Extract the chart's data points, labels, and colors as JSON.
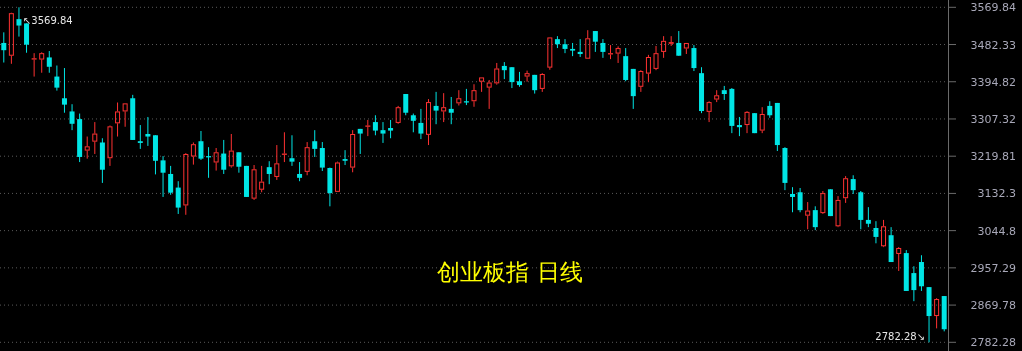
{
  "chart_data": {
    "type": "candlestick",
    "title": "创业板指 日线",
    "categories": [
      null,
      null,
      null,
      null,
      null,
      null,
      null,
      null,
      null,
      null,
      null,
      null,
      null,
      null,
      null,
      null,
      null,
      null,
      null,
      null,
      null,
      null,
      null,
      null,
      null,
      null,
      null,
      null,
      null,
      null,
      null,
      null,
      null,
      null,
      null,
      null,
      null,
      null,
      null,
      null,
      null,
      null,
      null,
      null,
      null,
      null,
      null,
      null,
      null,
      null,
      null,
      null,
      null,
      null,
      null,
      null,
      null,
      null,
      null,
      null,
      null,
      null,
      null,
      null,
      null,
      null,
      null,
      null,
      null,
      null,
      null,
      null,
      null,
      null,
      null,
      null,
      null,
      null,
      null,
      null,
      null,
      null,
      null,
      null,
      null,
      null,
      null,
      null,
      null,
      null,
      null,
      null,
      null,
      null,
      null,
      null,
      null,
      null,
      null,
      null,
      null,
      null,
      null,
      null,
      null,
      null,
      null,
      null,
      null,
      null,
      null,
      null,
      null,
      null,
      null,
      null,
      null,
      null,
      null,
      null,
      null,
      null,
      null,
      null,
      null
    ],
    "ohlc": [
      [
        3486,
        3511,
        3440,
        3469
      ],
      [
        3456,
        3557,
        3437,
        3556
      ],
      [
        3542,
        3569.84,
        3501,
        3527
      ],
      [
        3532,
        3532,
        3463,
        3482
      ],
      [
        3447,
        3462,
        3407,
        3450
      ],
      [
        3447,
        3464,
        3416,
        3462
      ],
      [
        3452,
        3467,
        3416,
        3430
      ],
      [
        3407,
        3433,
        3374,
        3381
      ],
      [
        3356,
        3427,
        3322,
        3341
      ],
      [
        3325,
        3342,
        3281,
        3296
      ],
      [
        3307,
        3320,
        3206,
        3218
      ],
      [
        3233,
        3266,
        3214,
        3243
      ],
      [
        3254,
        3300,
        3225,
        3273
      ],
      [
        3252,
        3262,
        3157,
        3188
      ],
      [
        3215,
        3292,
        3197,
        3290
      ],
      [
        3297,
        3346,
        3266,
        3325
      ],
      [
        3325,
        3344,
        3289,
        3344
      ],
      [
        3356,
        3364,
        3258,
        3258
      ],
      [
        3255,
        3293,
        3237,
        3251
      ],
      [
        3272,
        3312,
        3244,
        3266
      ],
      [
        3269,
        3269,
        3177,
        3209
      ],
      [
        3210,
        3220,
        3124,
        3181
      ],
      [
        3178,
        3197,
        3129,
        3134
      ],
      [
        3146,
        3161,
        3084,
        3099
      ],
      [
        3104,
        3227,
        3082,
        3225
      ],
      [
        3219,
        3252,
        3200,
        3248
      ],
      [
        3255,
        3279,
        3211,
        3214
      ],
      [
        3220,
        3241,
        3169,
        3217
      ],
      [
        3205,
        3239,
        3186,
        3229
      ],
      [
        3226,
        3258,
        3178,
        3188
      ],
      [
        3196,
        3272,
        3193,
        3233
      ],
      [
        3229,
        3229,
        3181,
        3195
      ],
      [
        3197,
        3197,
        3124,
        3124
      ],
      [
        3120,
        3199,
        3117,
        3189
      ],
      [
        3141,
        3197,
        3135,
        3160
      ],
      [
        3194,
        3208,
        3154,
        3178
      ],
      [
        3171,
        3246,
        3164,
        3203
      ],
      [
        3223,
        3276,
        3206,
        3226
      ],
      [
        3215,
        3269,
        3197,
        3207
      ],
      [
        3178,
        3206,
        3161,
        3169
      ],
      [
        3183,
        3253,
        3175,
        3241
      ],
      [
        3255,
        3281,
        3218,
        3237
      ],
      [
        3239,
        3253,
        3185,
        3193
      ],
      [
        3192,
        3193,
        3102,
        3133
      ],
      [
        3136,
        3207,
        3136,
        3205
      ],
      [
        3213,
        3234,
        3199,
        3209
      ],
      [
        3193,
        3281,
        3182,
        3272
      ],
      [
        3284,
        3284,
        3225,
        3273
      ],
      [
        3289,
        3305,
        3267,
        3292
      ],
      [
        3300,
        3316,
        3269,
        3280
      ],
      [
        3281,
        3300,
        3251,
        3273
      ],
      [
        3286,
        3305,
        3262,
        3280
      ],
      [
        3298,
        3338,
        3296,
        3335
      ],
      [
        3366,
        3366,
        3316,
        3322
      ],
      [
        3316,
        3320,
        3276,
        3303
      ],
      [
        3298,
        3331,
        3260,
        3273
      ],
      [
        3270,
        3354,
        3246,
        3347
      ],
      [
        3338,
        3371,
        3295,
        3327
      ],
      [
        3325,
        3368,
        3300,
        3335
      ],
      [
        3331,
        3359,
        3295,
        3322
      ],
      [
        3344,
        3375,
        3339,
        3356
      ],
      [
        3349,
        3378,
        3340,
        3346
      ],
      [
        3349,
        3389,
        3336,
        3375
      ],
      [
        3395,
        3405,
        3371,
        3405
      ],
      [
        3381,
        3399,
        3331,
        3393
      ],
      [
        3391,
        3439,
        3388,
        3426
      ],
      [
        3432,
        3441,
        3401,
        3422
      ],
      [
        3429,
        3429,
        3380,
        3394
      ],
      [
        3396,
        3418,
        3383,
        3387
      ],
      [
        3407,
        3421,
        3395,
        3415
      ],
      [
        3411,
        3411,
        3367,
        3375
      ],
      [
        3378,
        3415,
        3371,
        3413
      ],
      [
        3428,
        3499,
        3423,
        3499
      ],
      [
        3495,
        3502,
        3474,
        3483
      ],
      [
        3483,
        3495,
        3462,
        3472
      ],
      [
        3472,
        3486,
        3455,
        3468
      ],
      [
        3465,
        3495,
        3453,
        3460
      ],
      [
        3449,
        3516,
        3449,
        3497
      ],
      [
        3514,
        3514,
        3465,
        3489
      ],
      [
        3486,
        3495,
        3451,
        3465
      ],
      [
        3459,
        3481,
        3448,
        3462
      ],
      [
        3461,
        3478,
        3439,
        3474
      ],
      [
        3455,
        3474,
        3396,
        3399
      ],
      [
        3425,
        3425,
        3331,
        3361
      ],
      [
        3383,
        3422,
        3371,
        3420
      ],
      [
        3414,
        3458,
        3394,
        3453
      ],
      [
        3425,
        3479,
        3422,
        3462
      ],
      [
        3465,
        3502,
        3451,
        3491
      ],
      [
        3484,
        3502,
        3479,
        3488
      ],
      [
        3486,
        3514,
        3456,
        3456
      ],
      [
        3473,
        3486,
        3460,
        3486
      ],
      [
        3474,
        3481,
        3420,
        3427
      ],
      [
        3415,
        3429,
        3321,
        3326
      ],
      [
        3324,
        3349,
        3300,
        3347
      ],
      [
        3353,
        3375,
        3347,
        3363
      ],
      [
        3375,
        3385,
        3352,
        3366
      ],
      [
        3378,
        3380,
        3274,
        3291
      ],
      [
        3293,
        3312,
        3267,
        3288
      ],
      [
        3293,
        3326,
        3274,
        3324
      ],
      [
        3321,
        3321,
        3274,
        3274
      ],
      [
        3280,
        3335,
        3274,
        3319
      ],
      [
        3338,
        3349,
        3310,
        3316
      ],
      [
        3345,
        3345,
        3232,
        3246
      ],
      [
        3239,
        3241,
        3140,
        3157
      ],
      [
        3131,
        3147,
        3088,
        3124
      ],
      [
        3135,
        3145,
        3088,
        3093
      ],
      [
        3080,
        3112,
        3048,
        3092
      ],
      [
        3093,
        3102,
        3046,
        3053
      ],
      [
        3086,
        3138,
        3084,
        3133
      ],
      [
        3142,
        3142,
        3079,
        3079
      ],
      [
        3055,
        3126,
        3053,
        3117
      ],
      [
        3121,
        3173,
        3110,
        3168
      ],
      [
        3166,
        3175,
        3131,
        3140
      ],
      [
        3135,
        3138,
        3048,
        3070
      ],
      [
        3070,
        3100,
        3053,
        3061
      ],
      [
        3051,
        3067,
        3015,
        3030
      ],
      [
        3008,
        3070,
        3006,
        3055
      ],
      [
        3034,
        3053,
        2971,
        2971
      ],
      [
        2990,
        3006,
        2950,
        3004
      ],
      [
        2992,
        2999,
        2903,
        2903
      ],
      [
        2945,
        2961,
        2879,
        2905
      ],
      [
        2971,
        2987,
        2903,
        2914
      ],
      [
        2912,
        2912,
        2782.28,
        2844
      ],
      [
        2844,
        2886,
        2815,
        2884
      ],
      [
        2891,
        2891,
        2808,
        2813
      ]
    ],
    "colors": [
      "#00e5e5",
      "#ff3232",
      "#00e5e5",
      "#00e5e5",
      "#ff3232",
      "#ff3232",
      "#00e5e5",
      "#00e5e5",
      "#00e5e5",
      "#00e5e5",
      "#00e5e5",
      "#ff3232",
      "#ff3232",
      "#00e5e5",
      "#ff3232",
      "#ff3232",
      "#ff3232",
      "#00e5e5",
      "#00e5e5",
      "#00e5e5",
      "#00e5e5",
      "#00e5e5",
      "#00e5e5",
      "#00e5e5",
      "#ff3232",
      "#ff3232",
      "#00e5e5",
      "#00e5e5",
      "#ff3232",
      "#00e5e5",
      "#ff3232",
      "#00e5e5",
      "#00e5e5",
      "#ff3232",
      "#ff3232",
      "#00e5e5",
      "#ff3232",
      "#ff3232",
      "#00e5e5",
      "#00e5e5",
      "#ff3232",
      "#00e5e5",
      "#00e5e5",
      "#00e5e5",
      "#ff3232",
      "#00e5e5",
      "#ff3232",
      "#00e5e5",
      "#ff3232",
      "#00e5e5",
      "#00e5e5",
      "#00e5e5",
      "#ff3232",
      "#00e5e5",
      "#00e5e5",
      "#00e5e5",
      "#ff3232",
      "#00e5e5",
      "#ff3232",
      "#00e5e5",
      "#ff3232",
      "#00e5e5",
      "#ff3232",
      "#ff3232",
      "#ff3232",
      "#ff3232",
      "#00e5e5",
      "#00e5e5",
      "#00e5e5",
      "#ff3232",
      "#00e5e5",
      "#ff3232",
      "#ff3232",
      "#00e5e5",
      "#00e5e5",
      "#00e5e5",
      "#00e5e5",
      "#ff3232",
      "#00e5e5",
      "#00e5e5",
      "#ff3232",
      "#ff3232",
      "#00e5e5",
      "#00e5e5",
      "#ff3232",
      "#ff3232",
      "#ff3232",
      "#ff3232",
      "#ff3232",
      "#00e5e5",
      "#ff3232",
      "#00e5e5",
      "#00e5e5",
      "#ff3232",
      "#ff3232",
      "#00e5e5",
      "#00e5e5",
      "#00e5e5",
      "#ff3232",
      "#00e5e5",
      "#ff3232",
      "#00e5e5",
      "#00e5e5",
      "#00e5e5",
      "#00e5e5",
      "#00e5e5",
      "#ff3232",
      "#00e5e5",
      "#ff3232",
      "#00e5e5",
      "#ff3232",
      "#ff3232",
      "#00e5e5",
      "#00e5e5",
      "#00e5e5",
      "#00e5e5",
      "#ff3232",
      "#00e5e5",
      "#ff3232",
      "#00e5e5",
      "#00e5e5",
      "#00e5e5",
      "#00e5e5",
      "#ff3232",
      "#00e5e5"
    ],
    "ylim": [
      2782.28,
      3569.84
    ],
    "yticks": [
      2782.28,
      2869.78,
      2957.29,
      3044.8,
      3132.3,
      3219.81,
      3307.32,
      3394.82,
      3482.33,
      3569.84
    ],
    "grid": "y",
    "annotations": [
      "↖3569.84",
      "2782.28↘"
    ]
  }
}
